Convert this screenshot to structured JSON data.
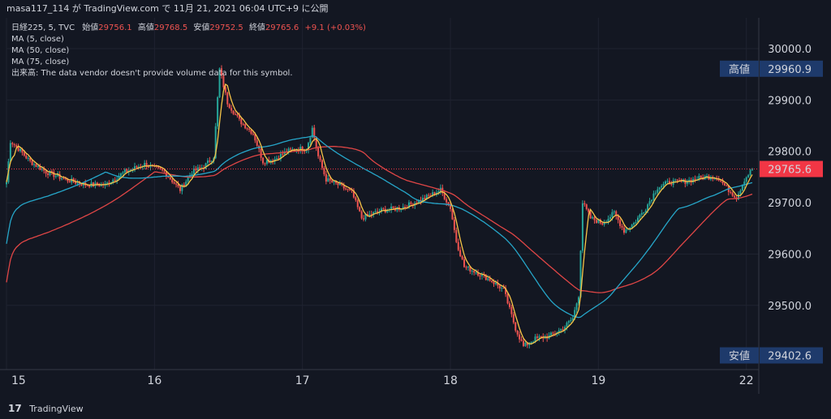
{
  "header": {
    "publish_line": "masa117_114 が TradingView.com で 11月 21, 2021 06:04 UTC+9 に公開"
  },
  "legend": {
    "symbol": "日経225, 5, TVC",
    "open_label": "始値",
    "open_value": "29756.1",
    "high_label": "高値",
    "high_value": "29768.5",
    "low_label": "安値",
    "low_value": "29752.5",
    "close_label": "終値",
    "close_value": "29765.6",
    "change": "+9.1 (+0.03%)",
    "ma_lines": [
      "MA (5, close)",
      "MA (50, close)",
      "MA (75, close)"
    ],
    "volume_note": "出来高: The data vendor doesn't provide volume data for this symbol."
  },
  "footer": {
    "brand": "TradingView",
    "logo_glyph": "17"
  },
  "colors": {
    "background": "#131722",
    "grid": "#1f2330",
    "up": "#26a69a",
    "down": "#ef5350",
    "ma5": "#f7c548",
    "ma50": "#26a6c9",
    "ma75": "#e04646",
    "axis_badge": "#1e3a6b",
    "price_badge": "#f23645"
  },
  "chart_data": {
    "type": "candlestick",
    "title": "",
    "xlabel": "",
    "ylabel": "",
    "ylim": [
      29375,
      30060
    ],
    "y_ticks": [
      "30000.0",
      "29900.0",
      "29800.0",
      "29700.0",
      "29600.0",
      "29500.0"
    ],
    "y_tick_values": [
      30000,
      29900,
      29800,
      29700,
      29600,
      29500
    ],
    "x_tick_labels": [
      "15",
      "16",
      "17",
      "18",
      "19",
      "22"
    ],
    "x_tick_index": [
      0,
      75,
      150,
      225,
      300,
      375
    ],
    "x_range": [
      0,
      378
    ],
    "current_price": {
      "value": 29765.6,
      "label": "29765.6"
    },
    "high_marker": {
      "name": "高値",
      "value": 29960.9,
      "label": "29960.9"
    },
    "low_marker": {
      "name": "安値",
      "value": 29402.6,
      "label": "29402.6"
    },
    "close_keypoints": [
      [
        0,
        29740
      ],
      [
        2,
        29820
      ],
      [
        6,
        29805
      ],
      [
        12,
        29780
      ],
      [
        20,
        29760
      ],
      [
        30,
        29745
      ],
      [
        40,
        29735
      ],
      [
        50,
        29735
      ],
      [
        60,
        29760
      ],
      [
        70,
        29775
      ],
      [
        80,
        29760
      ],
      [
        88,
        29725
      ],
      [
        94,
        29760
      ],
      [
        100,
        29770
      ],
      [
        105,
        29790
      ],
      [
        108,
        29960
      ],
      [
        112,
        29895
      ],
      [
        118,
        29860
      ],
      [
        125,
        29835
      ],
      [
        130,
        29780
      ],
      [
        136,
        29785
      ],
      [
        142,
        29800
      ],
      [
        148,
        29805
      ],
      [
        152,
        29805
      ],
      [
        155,
        29845
      ],
      [
        158,
        29790
      ],
      [
        162,
        29745
      ],
      [
        168,
        29735
      ],
      [
        175,
        29720
      ],
      [
        180,
        29670
      ],
      [
        190,
        29685
      ],
      [
        200,
        29690
      ],
      [
        210,
        29705
      ],
      [
        220,
        29725
      ],
      [
        225,
        29690
      ],
      [
        228,
        29625
      ],
      [
        232,
        29575
      ],
      [
        238,
        29565
      ],
      [
        245,
        29550
      ],
      [
        252,
        29530
      ],
      [
        258,
        29455
      ],
      [
        262,
        29420
      ],
      [
        268,
        29435
      ],
      [
        275,
        29440
      ],
      [
        282,
        29455
      ],
      [
        287,
        29475
      ],
      [
        290,
        29520
      ],
      [
        292,
        29700
      ],
      [
        296,
        29670
      ],
      [
        302,
        29660
      ],
      [
        308,
        29680
      ],
      [
        313,
        29645
      ],
      [
        318,
        29660
      ],
      [
        324,
        29690
      ],
      [
        330,
        29730
      ],
      [
        336,
        29740
      ],
      [
        342,
        29740
      ],
      [
        348,
        29745
      ],
      [
        354,
        29750
      ],
      [
        360,
        29750
      ],
      [
        366,
        29725
      ],
      [
        370,
        29710
      ],
      [
        374,
        29745
      ],
      [
        378,
        29766
      ]
    ]
  }
}
